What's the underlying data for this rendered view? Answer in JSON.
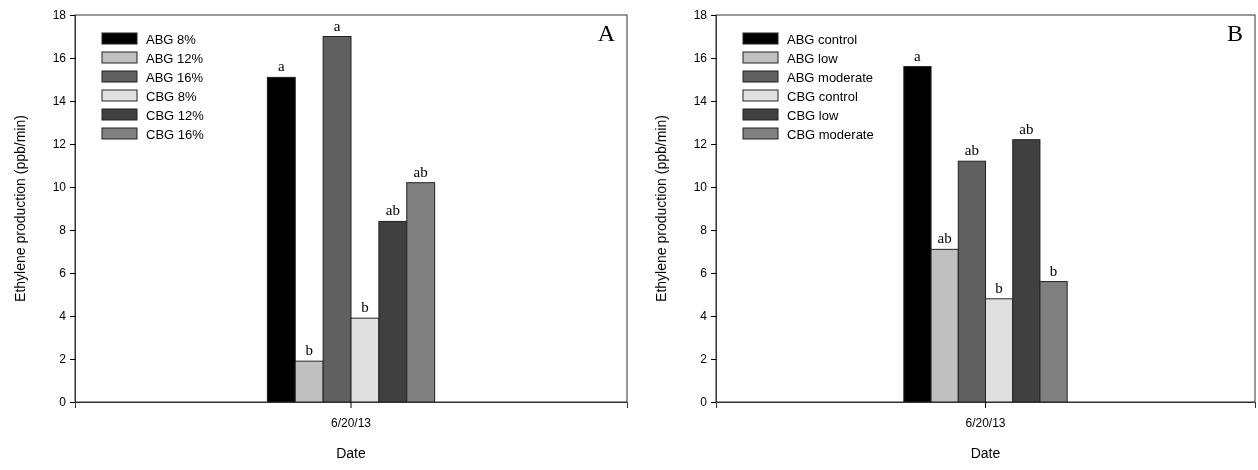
{
  "chart_data": [
    {
      "type": "bar",
      "title": "A",
      "xlabel": "Date",
      "ylabel": "Ethylene production (ppb/min)",
      "categories": [
        "6/20/13"
      ],
      "series": [
        {
          "name": "ABG 8%",
          "color": "#000000",
          "values": [
            15.1
          ],
          "value_labels": [
            "a"
          ]
        },
        {
          "name": "ABG 12%",
          "color": "#c0c0c0",
          "values": [
            1.9
          ],
          "value_labels": [
            "b"
          ]
        },
        {
          "name": "ABG 16%",
          "color": "#606060",
          "values": [
            17.0
          ],
          "value_labels": [
            "a"
          ]
        },
        {
          "name": "CBG 8%",
          "color": "#e0e0e0",
          "values": [
            3.9
          ],
          "value_labels": [
            "b"
          ]
        },
        {
          "name": "CBG 12%",
          "color": "#404040",
          "values": [
            8.4
          ],
          "value_labels": [
            "ab"
          ]
        },
        {
          "name": "CBG 16%",
          "color": "#808080",
          "values": [
            10.2
          ],
          "value_labels": [
            "ab"
          ]
        }
      ],
      "ylim": [
        0,
        18
      ],
      "yticks": [
        0,
        2,
        4,
        6,
        8,
        10,
        12,
        14,
        16,
        18
      ],
      "legend": "top left",
      "grid": false
    },
    {
      "type": "bar",
      "title": "B",
      "xlabel": "Date",
      "ylabel": "Ethylene production (ppb/min)",
      "categories": [
        "6/20/13"
      ],
      "series": [
        {
          "name": "ABG control",
          "color": "#000000",
          "values": [
            15.6
          ],
          "value_labels": [
            "a"
          ]
        },
        {
          "name": "ABG low",
          "color": "#c0c0c0",
          "values": [
            7.1
          ],
          "value_labels": [
            "ab"
          ]
        },
        {
          "name": "ABG moderate",
          "color": "#606060",
          "values": [
            11.2
          ],
          "value_labels": [
            "ab"
          ]
        },
        {
          "name": "CBG control",
          "color": "#e0e0e0",
          "values": [
            4.8
          ],
          "value_labels": [
            "b"
          ]
        },
        {
          "name": "CBG low",
          "color": "#404040",
          "values": [
            12.2
          ],
          "value_labels": [
            "ab"
          ]
        },
        {
          "name": "CBG moderate",
          "color": "#808080",
          "values": [
            5.6
          ],
          "value_labels": [
            "b"
          ]
        }
      ],
      "ylim": [
        0,
        18
      ],
      "yticks": [
        0,
        2,
        4,
        6,
        8,
        10,
        12,
        14,
        16,
        18
      ],
      "legend": "top left",
      "grid": false
    }
  ]
}
